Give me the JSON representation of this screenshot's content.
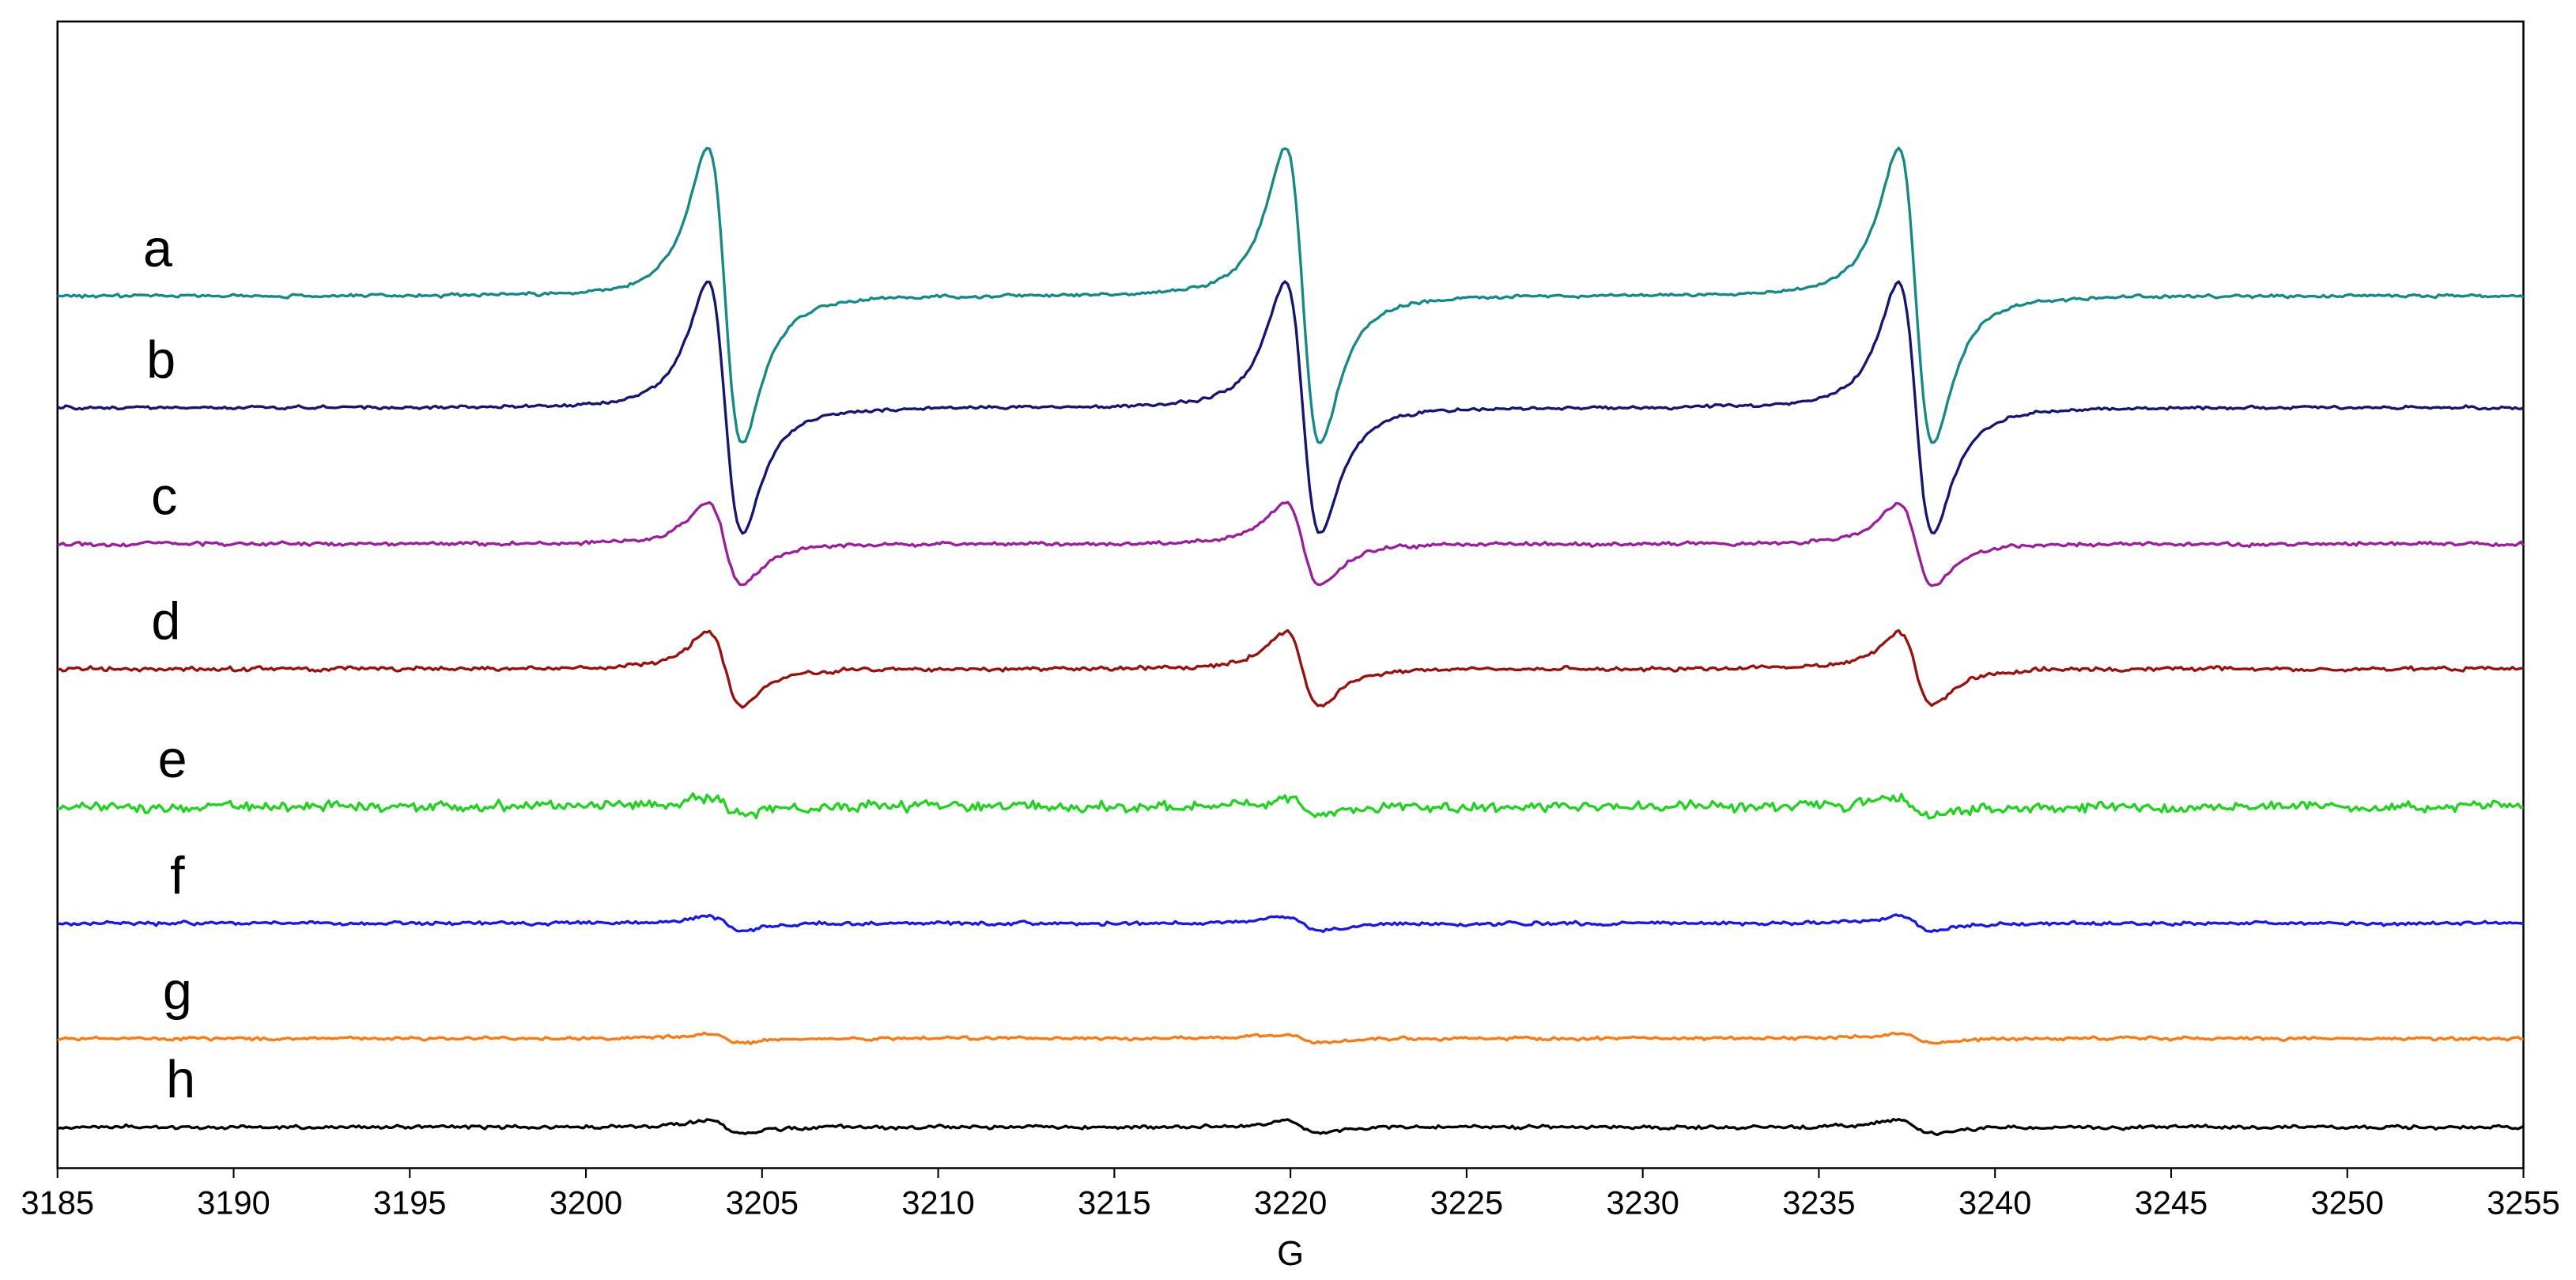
{
  "chart_data": {
    "type": "line",
    "title": "",
    "xlabel": "G",
    "ylabel": "",
    "xlim": [
      3185,
      3255
    ],
    "x_ticks": [
      3185,
      3190,
      3195,
      3200,
      3205,
      3210,
      3215,
      3220,
      3225,
      3230,
      3235,
      3240,
      3245,
      3250,
      3255
    ],
    "y_ticks": [],
    "grid": false,
    "legend": "none",
    "peaks_x": [
      3203.8,
      3220.2,
      3237.6
    ],
    "series": [
      {
        "name": "a",
        "color": "#148a86",
        "baseline": 180,
        "amplitude": 1.0,
        "noise": 1.0
      },
      {
        "name": "b",
        "color": "#151575",
        "baseline": 248,
        "amplitude": 0.85,
        "noise": 1.0
      },
      {
        "name": "c",
        "color": "#9b1f9b",
        "baseline": 331,
        "amplitude": 0.28,
        "noise": 1.2
      },
      {
        "name": "d",
        "color": "#9b0f0f",
        "baseline": 407,
        "amplitude": 0.25,
        "noise": 1.3
      },
      {
        "name": "e",
        "color": "#1ed41e",
        "baseline": 491,
        "amplitude": 0.06,
        "noise": 3.2
      },
      {
        "name": "f",
        "color": "#1717ee",
        "baseline": 562,
        "amplitude": 0.05,
        "noise": 1.1
      },
      {
        "name": "g",
        "color": "#ff7a10",
        "baseline": 632,
        "amplitude": 0.03,
        "noise": 1.0
      },
      {
        "name": "h",
        "color": "#000000",
        "baseline": 686,
        "amplitude": 0.045,
        "noise": 1.1
      }
    ]
  }
}
